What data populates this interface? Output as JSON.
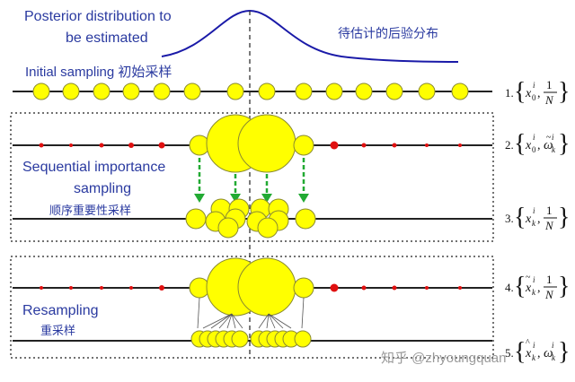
{
  "labels": {
    "posterior_line1": "Posterior distribution to",
    "posterior_line2": "be estimated",
    "posterior_cn": "待估计的后验分布",
    "initial_sampling": "Initial sampling 初始采样",
    "sis_line1": "Sequential importance",
    "sis_line2": "sampling",
    "sis_cn": "顺序重要性采样",
    "resampling": "Resampling",
    "resampling_cn": "重采样",
    "watermark": "知乎 @zhyoungquan"
  },
  "equations": [
    {
      "step": "1.",
      "symbol": "x",
      "sub": "0",
      "sup": "i",
      "term2": "1",
      "term2_den": "N",
      "accent": ""
    },
    {
      "step": "2.",
      "symbol": "x",
      "sub": "0",
      "sup": "i",
      "term2": "ω",
      "term2_sub": "k",
      "term2_sup": "i",
      "accent": "~"
    },
    {
      "step": "3.",
      "symbol": "x",
      "sub": "k",
      "sup": "i",
      "term2": "1",
      "term2_den": "N",
      "accent": ""
    },
    {
      "step": "4.",
      "symbol": "x",
      "sub": "k",
      "sup": "i",
      "term2": "1",
      "term2_den": "N",
      "accent": "~"
    },
    {
      "step": "5.",
      "symbol": "x",
      "sub": "k",
      "sup": "i",
      "term2": "ω",
      "term2_sub": "k",
      "term2_sup": "i",
      "accent": "^"
    }
  ],
  "colors": {
    "curve": "#1a1aa8",
    "particle_fill": "#ffff00",
    "particle_stroke": "#8a8a30",
    "red_dot": "#e01010",
    "arrow_green": "#22aa33",
    "arrow_gray": "#555555",
    "line": "#222222",
    "text_blue": "#2a3aa0"
  }
}
